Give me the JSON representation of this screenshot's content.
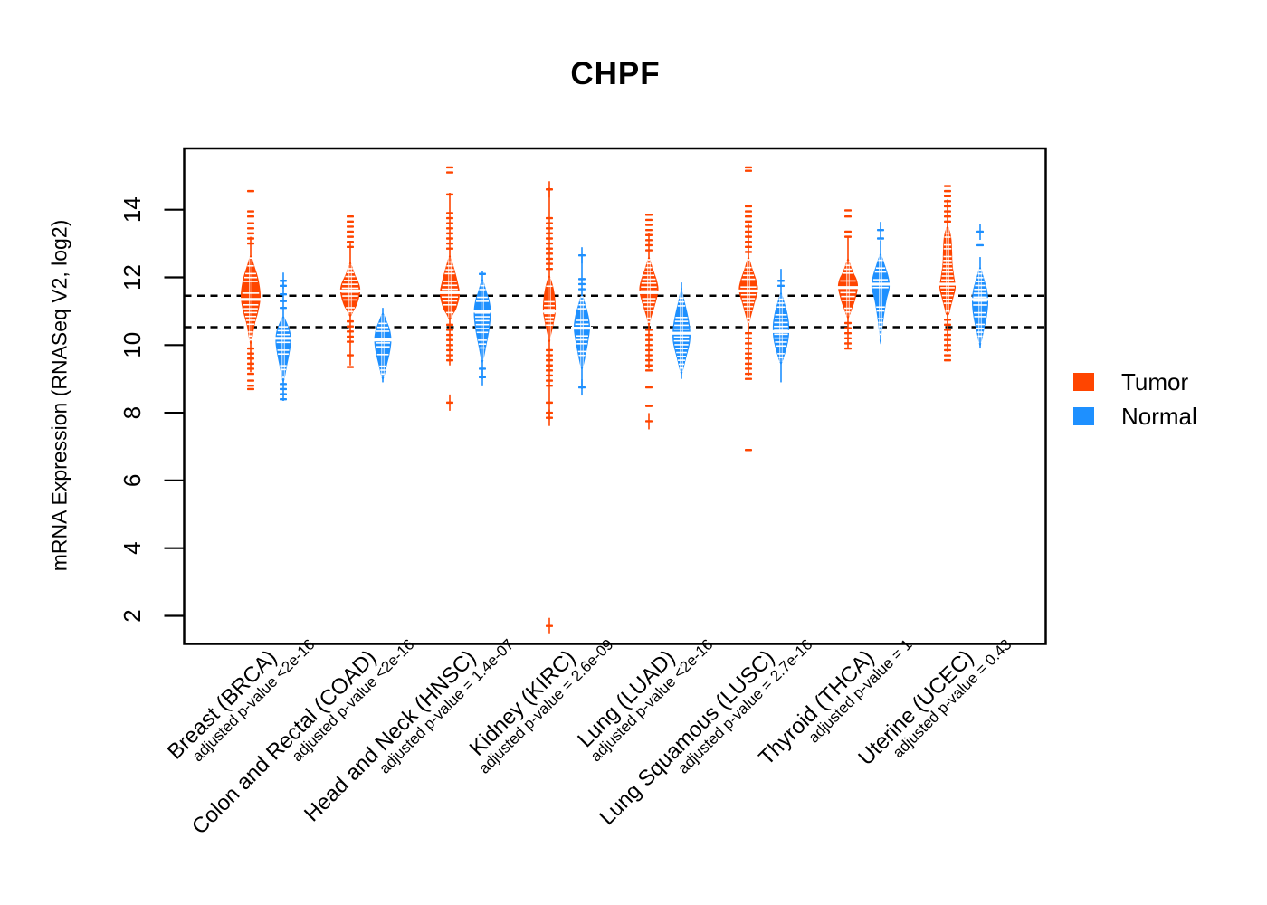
{
  "chart_data": {
    "type": "beanplot-violin",
    "title": "CHPF",
    "ylabel": "mRNA Expression (RNASeq V2, log2)",
    "y_ticks": [
      2,
      4,
      6,
      8,
      10,
      12,
      14
    ],
    "ylim": [
      1.2,
      15.8
    ],
    "grid": "off",
    "legend_position": "right",
    "reference_lines": [
      11.46,
      10.53
    ],
    "legend": [
      {
        "label": "Tumor",
        "color": "#FF4500"
      },
      {
        "label": "Normal",
        "color": "#1E90FF"
      }
    ],
    "groups": [
      {
        "name": "Breast (BRCA)",
        "pvalue": "adjusted p-value <2e-16",
        "tumor": {
          "median": 11.35,
          "body": [
            [
              12.65,
              0.6
            ],
            [
              12.35,
              4
            ],
            [
              11.95,
              8.5
            ],
            [
              11.45,
              11
            ],
            [
              11.0,
              8.5
            ],
            [
              10.6,
              4.5
            ],
            [
              10.05,
              0.8
            ]
          ],
          "spine": [
            13.2,
            9.2
          ],
          "out_hi": [
            14.55,
            13.95,
            13.8,
            13.6,
            13.45,
            13.3,
            13.15,
            13.0
          ],
          "out_lo": [
            9.9,
            9.75,
            9.6,
            9.45,
            9.3,
            9.15,
            8.95,
            8.8,
            8.7
          ],
          "plus_hi": [],
          "plus_lo": []
        },
        "normal": {
          "median": 10.2,
          "body": [
            [
              10.85,
              0.6
            ],
            [
              10.6,
              5
            ],
            [
              10.35,
              8
            ],
            [
              10.05,
              8.5
            ],
            [
              9.7,
              6.5
            ],
            [
              9.3,
              3.5
            ],
            [
              8.95,
              1
            ]
          ],
          "spine": [
            11.9,
            8.35
          ],
          "out_hi": [
            11.75,
            11.5,
            11.3,
            11.1
          ],
          "out_lo": [
            8.85,
            8.7,
            8.55,
            8.4
          ],
          "plus_hi": [
            11.9
          ],
          "plus_lo": []
        }
      },
      {
        "name": "Colon and Rectal (COAD)",
        "pvalue": "adjusted p-value <2e-16",
        "tumor": {
          "median": 11.6,
          "body": [
            [
              12.45,
              0.6
            ],
            [
              12.1,
              5
            ],
            [
              11.8,
              10
            ],
            [
              11.55,
              11
            ],
            [
              11.2,
              7.5
            ],
            [
              11.0,
              3.5
            ],
            [
              10.85,
              0.8
            ]
          ],
          "spine": [
            13.0,
            9.4
          ],
          "out_hi": [
            13.8,
            13.65,
            13.5,
            13.35,
            13.2,
            13.05,
            12.9
          ],
          "out_lo": [
            10.7,
            10.55,
            10.4,
            10.25,
            10.1,
            9.7,
            9.35
          ],
          "plus_hi": [],
          "plus_lo": []
        },
        "normal": {
          "median": 10.15,
          "body": [
            [
              10.95,
              0.6
            ],
            [
              10.7,
              4.5
            ],
            [
              10.45,
              8
            ],
            [
              10.15,
              9.5
            ],
            [
              9.8,
              8
            ],
            [
              9.4,
              4.5
            ],
            [
              9.0,
              0.8
            ]
          ],
          "spine": [
            11.1,
            8.9
          ],
          "out_hi": [],
          "out_lo": [],
          "plus_hi": [],
          "plus_lo": []
        }
      },
      {
        "name": "Head and Neck (HNSC)",
        "pvalue": "adjusted p-value = 1.4e-07",
        "tumor": {
          "median": 11.55,
          "body": [
            [
              12.65,
              0.6
            ],
            [
              12.3,
              4.5
            ],
            [
              11.9,
              8.5
            ],
            [
              11.5,
              11
            ],
            [
              11.1,
              7.5
            ],
            [
              10.9,
              3.5
            ],
            [
              10.75,
              0.8
            ]
          ],
          "spine": [
            14.5,
            9.4
          ],
          "out_hi": [
            15.25,
            15.1,
            14.45,
            13.9,
            13.75,
            13.6,
            13.45,
            13.3,
            13.15,
            13.0,
            12.85
          ],
          "out_lo": [
            10.6,
            10.45,
            10.3,
            10.15,
            10.0,
            9.85,
            9.7,
            9.55
          ],
          "plus_hi": [],
          "plus_lo": [
            8.3
          ]
        },
        "normal": {
          "median": 11.0,
          "body": [
            [
              11.95,
              0.6
            ],
            [
              11.6,
              4.5
            ],
            [
              11.3,
              8
            ],
            [
              10.95,
              9.5
            ],
            [
              10.5,
              8
            ],
            [
              10.0,
              4.5
            ],
            [
              9.5,
              0.8
            ]
          ],
          "spine": [
            12.2,
            9.0
          ],
          "out_hi": [
            12.1
          ],
          "out_lo": [
            9.3
          ],
          "plus_hi": [],
          "plus_lo": [
            9.05
          ]
        }
      },
      {
        "name": "Kidney (KIRC)",
        "pvalue": "adjusted p-value = 2.6e-09",
        "tumor": {
          "median": 11.0,
          "body": [
            [
              12.05,
              0.6
            ],
            [
              11.7,
              4.5
            ],
            [
              11.35,
              6.5
            ],
            [
              11.0,
              7
            ],
            [
              10.6,
              4.5
            ],
            [
              10.3,
              2
            ],
            [
              10.1,
              0.8
            ]
          ],
          "spine": [
            14.65,
            7.8
          ],
          "out_hi": [
            13.75,
            13.6,
            13.45,
            13.3,
            13.15,
            13.0,
            12.85,
            12.7,
            12.55,
            12.4,
            12.25
          ],
          "out_lo": [
            9.85,
            9.7,
            9.55,
            9.4,
            9.25,
            9.1,
            8.95,
            8.8,
            8.3,
            8.0
          ],
          "plus_hi": [
            14.6
          ],
          "plus_lo": [
            7.85,
            1.7
          ]
        },
        "normal": {
          "median": 10.5,
          "body": [
            [
              11.5,
              0.6
            ],
            [
              11.2,
              4
            ],
            [
              10.85,
              7.5
            ],
            [
              10.5,
              9
            ],
            [
              10.1,
              7
            ],
            [
              9.6,
              3.5
            ],
            [
              9.3,
              0.8
            ]
          ],
          "spine": [
            12.65,
            8.7
          ],
          "out_hi": [
            11.95,
            11.8,
            11.65
          ],
          "out_lo": [],
          "plus_hi": [
            12.65
          ],
          "plus_lo": [
            8.75
          ]
        }
      },
      {
        "name": "Lung (LUAD)",
        "pvalue": "adjusted p-value <2e-16",
        "tumor": {
          "median": 11.55,
          "body": [
            [
              12.6,
              0.6
            ],
            [
              12.25,
              4.5
            ],
            [
              11.9,
              9
            ],
            [
              11.6,
              10.5
            ],
            [
              11.2,
              7
            ],
            [
              10.85,
              3
            ],
            [
              10.6,
              0.8
            ]
          ],
          "spine": [
            13.3,
            9.3
          ],
          "out_hi": [
            13.85,
            13.7,
            13.55,
            13.4,
            13.25,
            13.1,
            12.95,
            12.8
          ],
          "out_lo": [
            10.45,
            10.3,
            10.15,
            10.0,
            9.85,
            9.7,
            9.55,
            9.4,
            9.25,
            8.75,
            8.2
          ],
          "plus_hi": [],
          "plus_lo": [
            7.75
          ]
        },
        "normal": {
          "median": 10.35,
          "body": [
            [
              11.7,
              0.6
            ],
            [
              11.3,
              3.5
            ],
            [
              10.9,
              7
            ],
            [
              10.5,
              9.5
            ],
            [
              10.1,
              9.5
            ],
            [
              9.6,
              5
            ],
            [
              9.15,
              0.8
            ]
          ],
          "spine": [
            11.85,
            9.0
          ],
          "out_hi": [],
          "out_lo": [],
          "plus_hi": [],
          "plus_lo": []
        }
      },
      {
        "name": "Lung Squamous (LUSC)",
        "pvalue": "adjusted p-value = 2.7e-16",
        "tumor": {
          "median": 11.6,
          "body": [
            [
              12.6,
              0.6
            ],
            [
              12.25,
              4.5
            ],
            [
              11.9,
              9
            ],
            [
              11.6,
              10.5
            ],
            [
              11.2,
              6.5
            ],
            [
              10.8,
              2.5
            ],
            [
              10.5,
              0.8
            ]
          ],
          "spine": [
            13.6,
            9.1
          ],
          "out_hi": [
            15.25,
            15.15,
            14.1,
            13.95,
            13.8,
            13.65,
            13.5,
            13.35,
            13.2,
            13.05,
            12.9,
            12.75
          ],
          "out_lo": [
            10.35,
            10.2,
            10.05,
            9.9,
            9.75,
            9.6,
            9.45,
            9.3,
            9.15,
            9.0,
            6.9
          ],
          "plus_hi": [],
          "plus_lo": []
        },
        "normal": {
          "median": 10.4,
          "body": [
            [
              11.55,
              0.6
            ],
            [
              11.25,
              4
            ],
            [
              10.95,
              7
            ],
            [
              10.6,
              9
            ],
            [
              10.2,
              8.5
            ],
            [
              9.8,
              5
            ],
            [
              9.45,
              0.8
            ]
          ],
          "spine": [
            12.25,
            8.9
          ],
          "out_hi": [
            11.9,
            11.75
          ],
          "out_lo": [],
          "plus_hi": [],
          "plus_lo": []
        }
      },
      {
        "name": "Thyroid (THCA)",
        "pvalue": "adjusted p-value = 1",
        "tumor": {
          "median": 11.7,
          "body": [
            [
              12.55,
              0.6
            ],
            [
              12.2,
              5
            ],
            [
              11.95,
              9.5
            ],
            [
              11.7,
              11
            ],
            [
              11.3,
              7.5
            ],
            [
              11.0,
              3.5
            ],
            [
              10.8,
              0.8
            ]
          ],
          "spine": [
            13.2,
            9.9
          ],
          "out_hi": [
            13.98,
            13.8,
            13.35,
            13.2
          ],
          "out_lo": [
            10.65,
            10.5,
            10.35,
            10.2,
            10.05,
            9.9
          ],
          "plus_hi": [],
          "plus_lo": []
        },
        "normal": {
          "median": 11.8,
          "body": [
            [
              12.7,
              0.6
            ],
            [
              12.35,
              5
            ],
            [
              12.0,
              9
            ],
            [
              11.7,
              10
            ],
            [
              11.3,
              6.5
            ],
            [
              10.7,
              3
            ],
            [
              10.1,
              0.8
            ]
          ],
          "spine": [
            13.1,
            10.1
          ],
          "out_hi": [
            13.15
          ],
          "out_lo": [],
          "plus_hi": [
            13.4
          ],
          "plus_lo": []
        }
      },
      {
        "name": "Uterine (UCEC)",
        "pvalue": "adjusted p-value = 0.43",
        "tumor": {
          "median": 11.8,
          "body": [
            [
              13.5,
              0.8
            ],
            [
              13.2,
              4
            ],
            [
              12.8,
              5
            ],
            [
              12.4,
              5.5
            ],
            [
              12.0,
              7.5
            ],
            [
              11.7,
              9
            ],
            [
              11.4,
              6.5
            ],
            [
              11.1,
              3.5
            ],
            [
              10.9,
              1.5
            ]
          ],
          "spine": [
            14.3,
            9.8
          ],
          "out_hi": [
            14.7,
            14.55,
            14.4,
            14.25,
            14.1,
            13.95,
            13.8,
            13.65
          ],
          "out_lo": [
            10.75,
            10.6,
            10.45,
            10.3,
            10.15,
            10.0,
            9.85,
            9.7,
            9.55
          ],
          "plus_hi": [],
          "plus_lo": []
        },
        "normal": {
          "median": 11.35,
          "body": [
            [
              12.3,
              0.6
            ],
            [
              11.95,
              4.5
            ],
            [
              11.6,
              8
            ],
            [
              11.25,
              9
            ],
            [
              10.85,
              7.5
            ],
            [
              10.4,
              4
            ],
            [
              10.0,
              0.8
            ]
          ],
          "spine": [
            12.6,
            9.9
          ],
          "out_hi": [
            12.95
          ],
          "out_lo": [],
          "plus_hi": [
            13.35
          ],
          "plus_lo": []
        }
      }
    ]
  }
}
